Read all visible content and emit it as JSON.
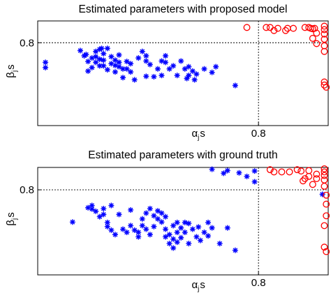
{
  "chart_data": [
    {
      "type": "scatter",
      "title": "Estimated parameters with proposed model",
      "xlabel": {
        "base": "α",
        "sub": "j",
        "suffix": "s"
      },
      "ylabel": {
        "base": "β",
        "sub": "j",
        "suffix": "s"
      },
      "xlim": [
        0.23,
        0.98
      ],
      "ylim": [
        0.61,
        0.85
      ],
      "x_ticks": [
        {
          "value": 0.8,
          "label": "0.8"
        }
      ],
      "y_ticks": [
        {
          "value": 0.8,
          "label": "0.8"
        }
      ],
      "reference_lines": {
        "x": 0.8,
        "y": 0.8,
        "style": "dotted"
      },
      "grid": false,
      "series": [
        {
          "marker": "asterisk",
          "color": "#0000ff",
          "points": [
            [
              0.25,
              0.755
            ],
            [
              0.25,
              0.743
            ],
            [
              0.34,
              0.782
            ],
            [
              0.35,
              0.77
            ],
            [
              0.355,
              0.773
            ],
            [
              0.36,
              0.757
            ],
            [
              0.36,
              0.735
            ],
            [
              0.37,
              0.765
            ],
            [
              0.37,
              0.743
            ],
            [
              0.38,
              0.78
            ],
            [
              0.38,
              0.768
            ],
            [
              0.38,
              0.755
            ],
            [
              0.39,
              0.785
            ],
            [
              0.39,
              0.762
            ],
            [
              0.39,
              0.747
            ],
            [
              0.395,
              0.787
            ],
            [
              0.4,
              0.775
            ],
            [
              0.4,
              0.76
            ],
            [
              0.4,
              0.747
            ],
            [
              0.41,
              0.787
            ],
            [
              0.41,
              0.738
            ],
            [
              0.42,
              0.768
            ],
            [
              0.42,
              0.752
            ],
            [
              0.43,
              0.76
            ],
            [
              0.43,
              0.748
            ],
            [
              0.43,
              0.733
            ],
            [
              0.44,
              0.772
            ],
            [
              0.44,
              0.755
            ],
            [
              0.44,
              0.745
            ],
            [
              0.45,
              0.74
            ],
            [
              0.45,
              0.72
            ],
            [
              0.46,
              0.757
            ],
            [
              0.46,
              0.74
            ],
            [
              0.47,
              0.752
            ],
            [
              0.47,
              0.733
            ],
            [
              0.48,
              0.715
            ],
            [
              0.49,
              0.765
            ],
            [
              0.5,
              0.78
            ],
            [
              0.51,
              0.77
            ],
            [
              0.51,
              0.758
            ],
            [
              0.51,
              0.723
            ],
            [
              0.52,
              0.75
            ],
            [
              0.53,
              0.722
            ],
            [
              0.54,
              0.74
            ],
            [
              0.55,
              0.758
            ],
            [
              0.55,
              0.725
            ],
            [
              0.56,
              0.77
            ],
            [
              0.56,
              0.755
            ],
            [
              0.57,
              0.74
            ],
            [
              0.58,
              0.747
            ],
            [
              0.59,
              0.725
            ],
            [
              0.6,
              0.758
            ],
            [
              0.61,
              0.74
            ],
            [
              0.615,
              0.718
            ],
            [
              0.62,
              0.745
            ],
            [
              0.62,
              0.725
            ],
            [
              0.63,
              0.735
            ],
            [
              0.635,
              0.715
            ],
            [
              0.64,
              0.728
            ],
            [
              0.66,
              0.74
            ],
            [
              0.68,
              0.732
            ],
            [
              0.69,
              0.745
            ],
            [
              0.74,
              0.702
            ]
          ]
        },
        {
          "marker": "circle",
          "color": "#ff0000",
          "points": [
            [
              0.77,
              0.835
            ],
            [
              0.82,
              0.835
            ],
            [
              0.83,
              0.835
            ],
            [
              0.84,
              0.828
            ],
            [
              0.85,
              0.833
            ],
            [
              0.87,
              0.828
            ],
            [
              0.875,
              0.833
            ],
            [
              0.89,
              0.833
            ],
            [
              0.92,
              0.835
            ],
            [
              0.93,
              0.835
            ],
            [
              0.935,
              0.833
            ],
            [
              0.94,
              0.832
            ],
            [
              0.94,
              0.81
            ],
            [
              0.945,
              0.833
            ],
            [
              0.95,
              0.822
            ],
            [
              0.95,
              0.798
            ],
            [
              0.97,
              0.838
            ],
            [
              0.97,
              0.83
            ],
            [
              0.97,
              0.82
            ],
            [
              0.97,
              0.808
            ],
            [
              0.97,
              0.793
            ],
            [
              0.97,
              0.78
            ],
            [
              0.97,
              0.71
            ],
            [
              0.97,
              0.703
            ],
            [
              0.975,
              0.698
            ]
          ]
        }
      ]
    },
    {
      "type": "scatter",
      "title": "Estimated parameters with ground truth",
      "xlabel": {
        "base": "α",
        "sub": "j",
        "suffix": "s"
      },
      "ylabel": {
        "base": "β",
        "sub": "j",
        "suffix": "s"
      },
      "xlim": [
        0.23,
        0.98
      ],
      "ylim": [
        0.61,
        0.85
      ],
      "x_ticks": [
        {
          "value": 0.8,
          "label": "0.8"
        }
      ],
      "y_ticks": [
        {
          "value": 0.8,
          "label": "0.8"
        }
      ],
      "reference_lines": {
        "x": 0.8,
        "y": 0.8,
        "style": "dotted"
      },
      "grid": false,
      "series": [
        {
          "marker": "asterisk",
          "color": "#0000ff",
          "points": [
            [
              0.32,
              0.728
            ],
            [
              0.36,
              0.76
            ],
            [
              0.37,
              0.757
            ],
            [
              0.37,
              0.765
            ],
            [
              0.38,
              0.752
            ],
            [
              0.39,
              0.74
            ],
            [
              0.4,
              0.758
            ],
            [
              0.4,
              0.745
            ],
            [
              0.41,
              0.727
            ],
            [
              0.41,
              0.718
            ],
            [
              0.42,
              0.71
            ],
            [
              0.42,
              0.765
            ],
            [
              0.43,
              0.7
            ],
            [
              0.44,
              0.745
            ],
            [
              0.45,
              0.712
            ],
            [
              0.46,
              0.705
            ],
            [
              0.47,
              0.755
            ],
            [
              0.47,
              0.72
            ],
            [
              0.48,
              0.71
            ],
            [
              0.49,
              0.705
            ],
            [
              0.49,
              0.695
            ],
            [
              0.5,
              0.735
            ],
            [
              0.5,
              0.72
            ],
            [
              0.51,
              0.748
            ],
            [
              0.51,
              0.712
            ],
            [
              0.52,
              0.758
            ],
            [
              0.52,
              0.7
            ],
            [
              0.53,
              0.742
            ],
            [
              0.53,
              0.718
            ],
            [
              0.54,
              0.753
            ],
            [
              0.54,
              0.735
            ],
            [
              0.55,
              0.748
            ],
            [
              0.55,
              0.728
            ],
            [
              0.56,
              0.74
            ],
            [
              0.56,
              0.712
            ],
            [
              0.56,
              0.695
            ],
            [
              0.57,
              0.7
            ],
            [
              0.57,
              0.68
            ],
            [
              0.58,
              0.69
            ],
            [
              0.58,
              0.72
            ],
            [
              0.58,
              0.67
            ],
            [
              0.59,
              0.727
            ],
            [
              0.59,
              0.705
            ],
            [
              0.59,
              0.683
            ],
            [
              0.6,
              0.715
            ],
            [
              0.6,
              0.693
            ],
            [
              0.61,
              0.727
            ],
            [
              0.61,
              0.705
            ],
            [
              0.62,
              0.68
            ],
            [
              0.62,
              0.725
            ],
            [
              0.63,
              0.712
            ],
            [
              0.64,
              0.695
            ],
            [
              0.645,
              0.717
            ],
            [
              0.65,
              0.687
            ],
            [
              0.66,
              0.705
            ],
            [
              0.67,
              0.727
            ],
            [
              0.67,
              0.697
            ],
            [
              0.68,
              0.715
            ],
            [
              0.7,
              0.68
            ],
            [
              0.72,
              0.715
            ],
            [
              0.74,
              0.665
            ],
            [
              0.68,
              0.846
            ],
            [
              0.71,
              0.837
            ],
            [
              0.72,
              0.843
            ],
            [
              0.75,
              0.838
            ],
            [
              0.77,
              0.83
            ],
            [
              0.79,
              0.818
            ],
            [
              0.79,
              0.842
            ],
            [
              0.965,
              0.79
            ]
          ]
        },
        {
          "marker": "circle",
          "color": "#ff0000",
          "points": [
            [
              0.83,
              0.845
            ],
            [
              0.84,
              0.84
            ],
            [
              0.86,
              0.84
            ],
            [
              0.88,
              0.84
            ],
            [
              0.9,
              0.845
            ],
            [
              0.91,
              0.842
            ],
            [
              0.915,
              0.82
            ],
            [
              0.92,
              0.825
            ],
            [
              0.93,
              0.843
            ],
            [
              0.93,
              0.83
            ],
            [
              0.94,
              0.812
            ],
            [
              0.95,
              0.835
            ],
            [
              0.95,
              0.825
            ],
            [
              0.97,
              0.847
            ],
            [
              0.97,
              0.84
            ],
            [
              0.97,
              0.832
            ],
            [
              0.97,
              0.822
            ],
            [
              0.97,
              0.808
            ],
            [
              0.975,
              0.788
            ],
            [
              0.975,
              0.768
            ],
            [
              0.975,
              0.742
            ],
            [
              0.97,
              0.72
            ],
            [
              0.97,
              0.672
            ],
            [
              0.975,
              0.662
            ]
          ]
        }
      ]
    }
  ]
}
